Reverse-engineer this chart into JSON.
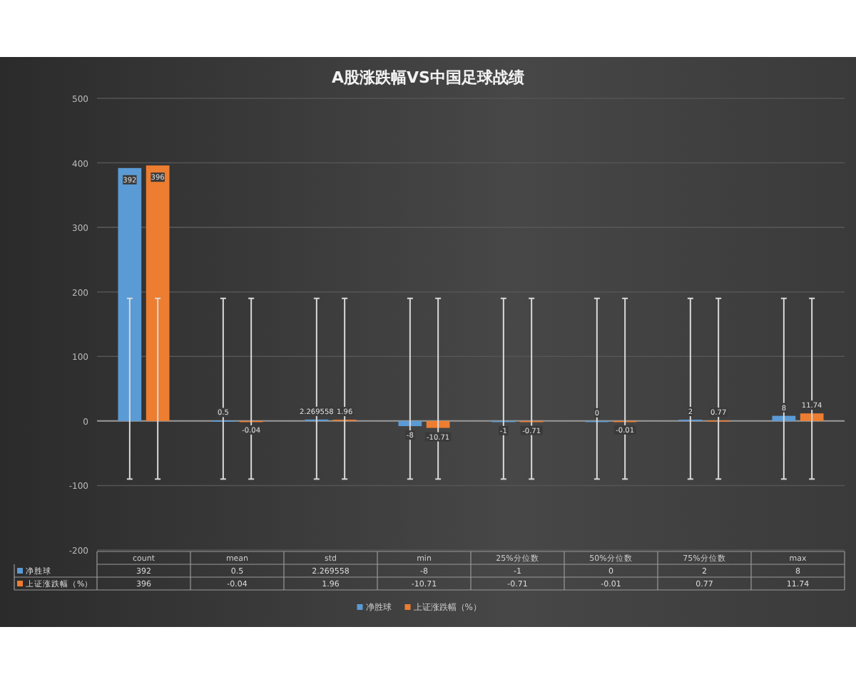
{
  "chart_data": {
    "type": "bar",
    "title": "A股涨跌幅VS中国足球战绩",
    "categories": [
      "count",
      "mean",
      "std",
      "min",
      "25%分位数",
      "50%分位数",
      "75%分位数",
      "max"
    ],
    "series": [
      {
        "name": "净胜球",
        "color": "#5b9bd5",
        "values": [
          392,
          0.5,
          2.269558,
          -8,
          -1,
          0,
          2,
          8
        ],
        "value_labels": [
          "392",
          "0.5",
          "2.269558",
          "-8",
          "-1",
          "0",
          "2",
          "8"
        ],
        "errors": [
          [
            -90,
            190
          ],
          [
            -90,
            190
          ],
          [
            -90,
            190
          ],
          [
            -90,
            190
          ],
          [
            -90,
            190
          ],
          [
            -90,
            190
          ],
          [
            -90,
            190
          ],
          [
            -90,
            190
          ]
        ]
      },
      {
        "name": "上证涨跌幅（%）",
        "color": "#ed7d31",
        "values": [
          396,
          -0.04,
          1.96,
          -10.71,
          -0.71,
          -0.01,
          0.77,
          11.74
        ],
        "value_labels": [
          "396",
          "-0.04",
          "1.96",
          "-10.71",
          "-0.71",
          "-0.01",
          "0.77",
          "11.74"
        ],
        "errors": [
          [
            -90,
            190
          ],
          [
            -90,
            190
          ],
          [
            -90,
            190
          ],
          [
            -90,
            190
          ],
          [
            -90,
            190
          ],
          [
            -90,
            190
          ],
          [
            -90,
            190
          ],
          [
            -90,
            190
          ]
        ]
      }
    ],
    "ylim": [
      -200,
      500
    ],
    "yticks": [
      -200,
      -100,
      0,
      100,
      200,
      300,
      400,
      500
    ],
    "grid": "y",
    "legend": "bottom",
    "annotations": [
      "392",
      "0.5",
      "2.269558",
      "-8",
      "-1",
      "0",
      "2",
      "8",
      "396",
      "-0.04",
      "1.96",
      "-10.71",
      "-0.71",
      "-0.01",
      "0.77",
      "11.74"
    ]
  }
}
